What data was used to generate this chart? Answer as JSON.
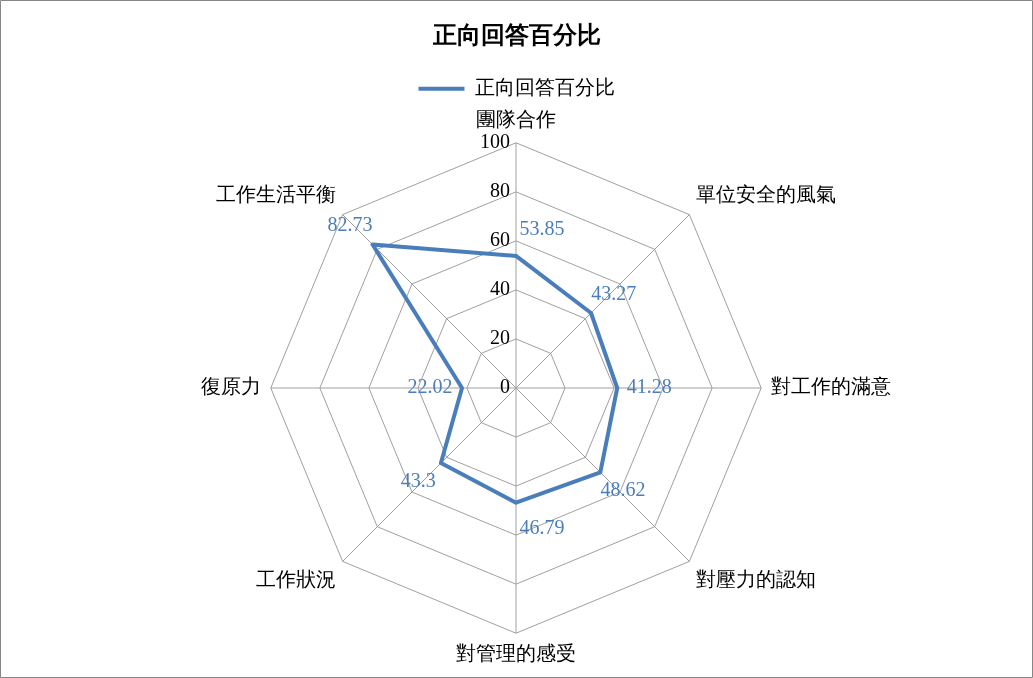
{
  "chart_data": {
    "type": "radar",
    "title": "正向回答百分比",
    "categories": [
      "團隊合作",
      "單位安全的風氣",
      "對工作的滿意",
      "對壓力的認知",
      "對管理的感受",
      "工作狀況",
      "復原力",
      "工作生活平衡"
    ],
    "series": [
      {
        "name": "正向回答百分比",
        "color": "#4a7ebb",
        "values": [
          53.85,
          43.27,
          41.28,
          48.62,
          46.79,
          43.3,
          22.02,
          82.73
        ]
      }
    ],
    "ylim": [
      0,
      100
    ],
    "yticks": [
      0,
      20,
      40,
      60,
      80,
      100
    ],
    "grid": true,
    "legend": "top",
    "data_labels": true,
    "marker": "none"
  }
}
